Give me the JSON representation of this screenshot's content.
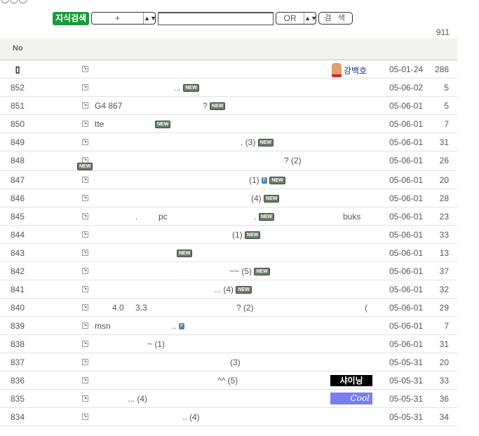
{
  "search": {
    "label": "지식검색",
    "field_select": "+",
    "operator": "OR",
    "button": "검 색",
    "query": ""
  },
  "total_count": "911",
  "header": {
    "no": "No"
  },
  "notice": {
    "author": "강백호",
    "date": "05-01-24",
    "views": "286"
  },
  "rows": [
    {
      "no": "852",
      "segs": [
        "..."
      ],
      "new": true,
      "date": "05-06-02",
      "views": "5"
    },
    {
      "no": "851",
      "segs": [
        "G4 867",
        "?"
      ],
      "new": true,
      "date": "05-06-01",
      "views": "5"
    },
    {
      "no": "850",
      "segs": [
        "tte",
        ""
      ],
      "new": true,
      "date": "05-06-01",
      "views": "7"
    },
    {
      "no": "849",
      "segs": [
        ". (3)"
      ],
      "new": true,
      "date": "05-06-01",
      "views": "31"
    },
    {
      "no": "848",
      "segs": [
        "? (2)"
      ],
      "new": true,
      "new_wrap": true,
      "date": "05-06-01",
      "views": "26"
    },
    {
      "no": "847",
      "segs": [
        "(1)"
      ],
      "file": true,
      "new": true,
      "date": "05-06-01",
      "views": "20"
    },
    {
      "no": "846",
      "segs": [
        "(4)"
      ],
      "new": true,
      "date": "05-06-01",
      "views": "28"
    },
    {
      "no": "845",
      "segs": [
        ".",
        "pc",
        "."
      ],
      "new": true,
      "author": "buks",
      "date": "05-06-01",
      "views": "23"
    },
    {
      "no": "844",
      "segs": [
        "(1)"
      ],
      "new": true,
      "date": "05-06-01",
      "views": "33"
    },
    {
      "no": "843",
      "segs": [
        ""
      ],
      "new": true,
      "date": "05-06-01",
      "views": "13"
    },
    {
      "no": "842",
      "segs": [
        "~~ (5)"
      ],
      "new": true,
      "date": "05-06-01",
      "views": "37"
    },
    {
      "no": "841",
      "segs": [
        "... (4)"
      ],
      "new": true,
      "date": "05-06-01",
      "views": "32"
    },
    {
      "no": "840",
      "segs": [
        "4.0",
        "3.3",
        "? (2)"
      ],
      "author": "(",
      "date": "05-06-01",
      "views": "29"
    },
    {
      "no": "839",
      "segs": [
        "msn",
        ".."
      ],
      "file": true,
      "date": "05-06-01",
      "views": "7"
    },
    {
      "no": "838",
      "segs": [
        "~ (1)"
      ],
      "date": "05-06-01",
      "views": "31"
    },
    {
      "no": "837",
      "segs": [
        "(3)"
      ],
      "date": "05-05-31",
      "views": "20"
    },
    {
      "no": "836",
      "segs": [
        "^^ (5)"
      ],
      "author_badge": "샤이닝",
      "date": "05-05-31",
      "views": "33"
    },
    {
      "no": "835",
      "segs": [
        "... (4)"
      ],
      "author_badge2": "Cool",
      "date": "05-05-31",
      "views": "36"
    },
    {
      "no": "834",
      "segs": [
        ".. (4)"
      ],
      "date": "05-05-31",
      "views": "34"
    }
  ],
  "labels": {
    "new": "NEW",
    "file": "F"
  },
  "colors": {
    "search_label": "#1a9a3c",
    "new_badge": "#6b7d62",
    "header_bg": "#f3f2ee"
  }
}
